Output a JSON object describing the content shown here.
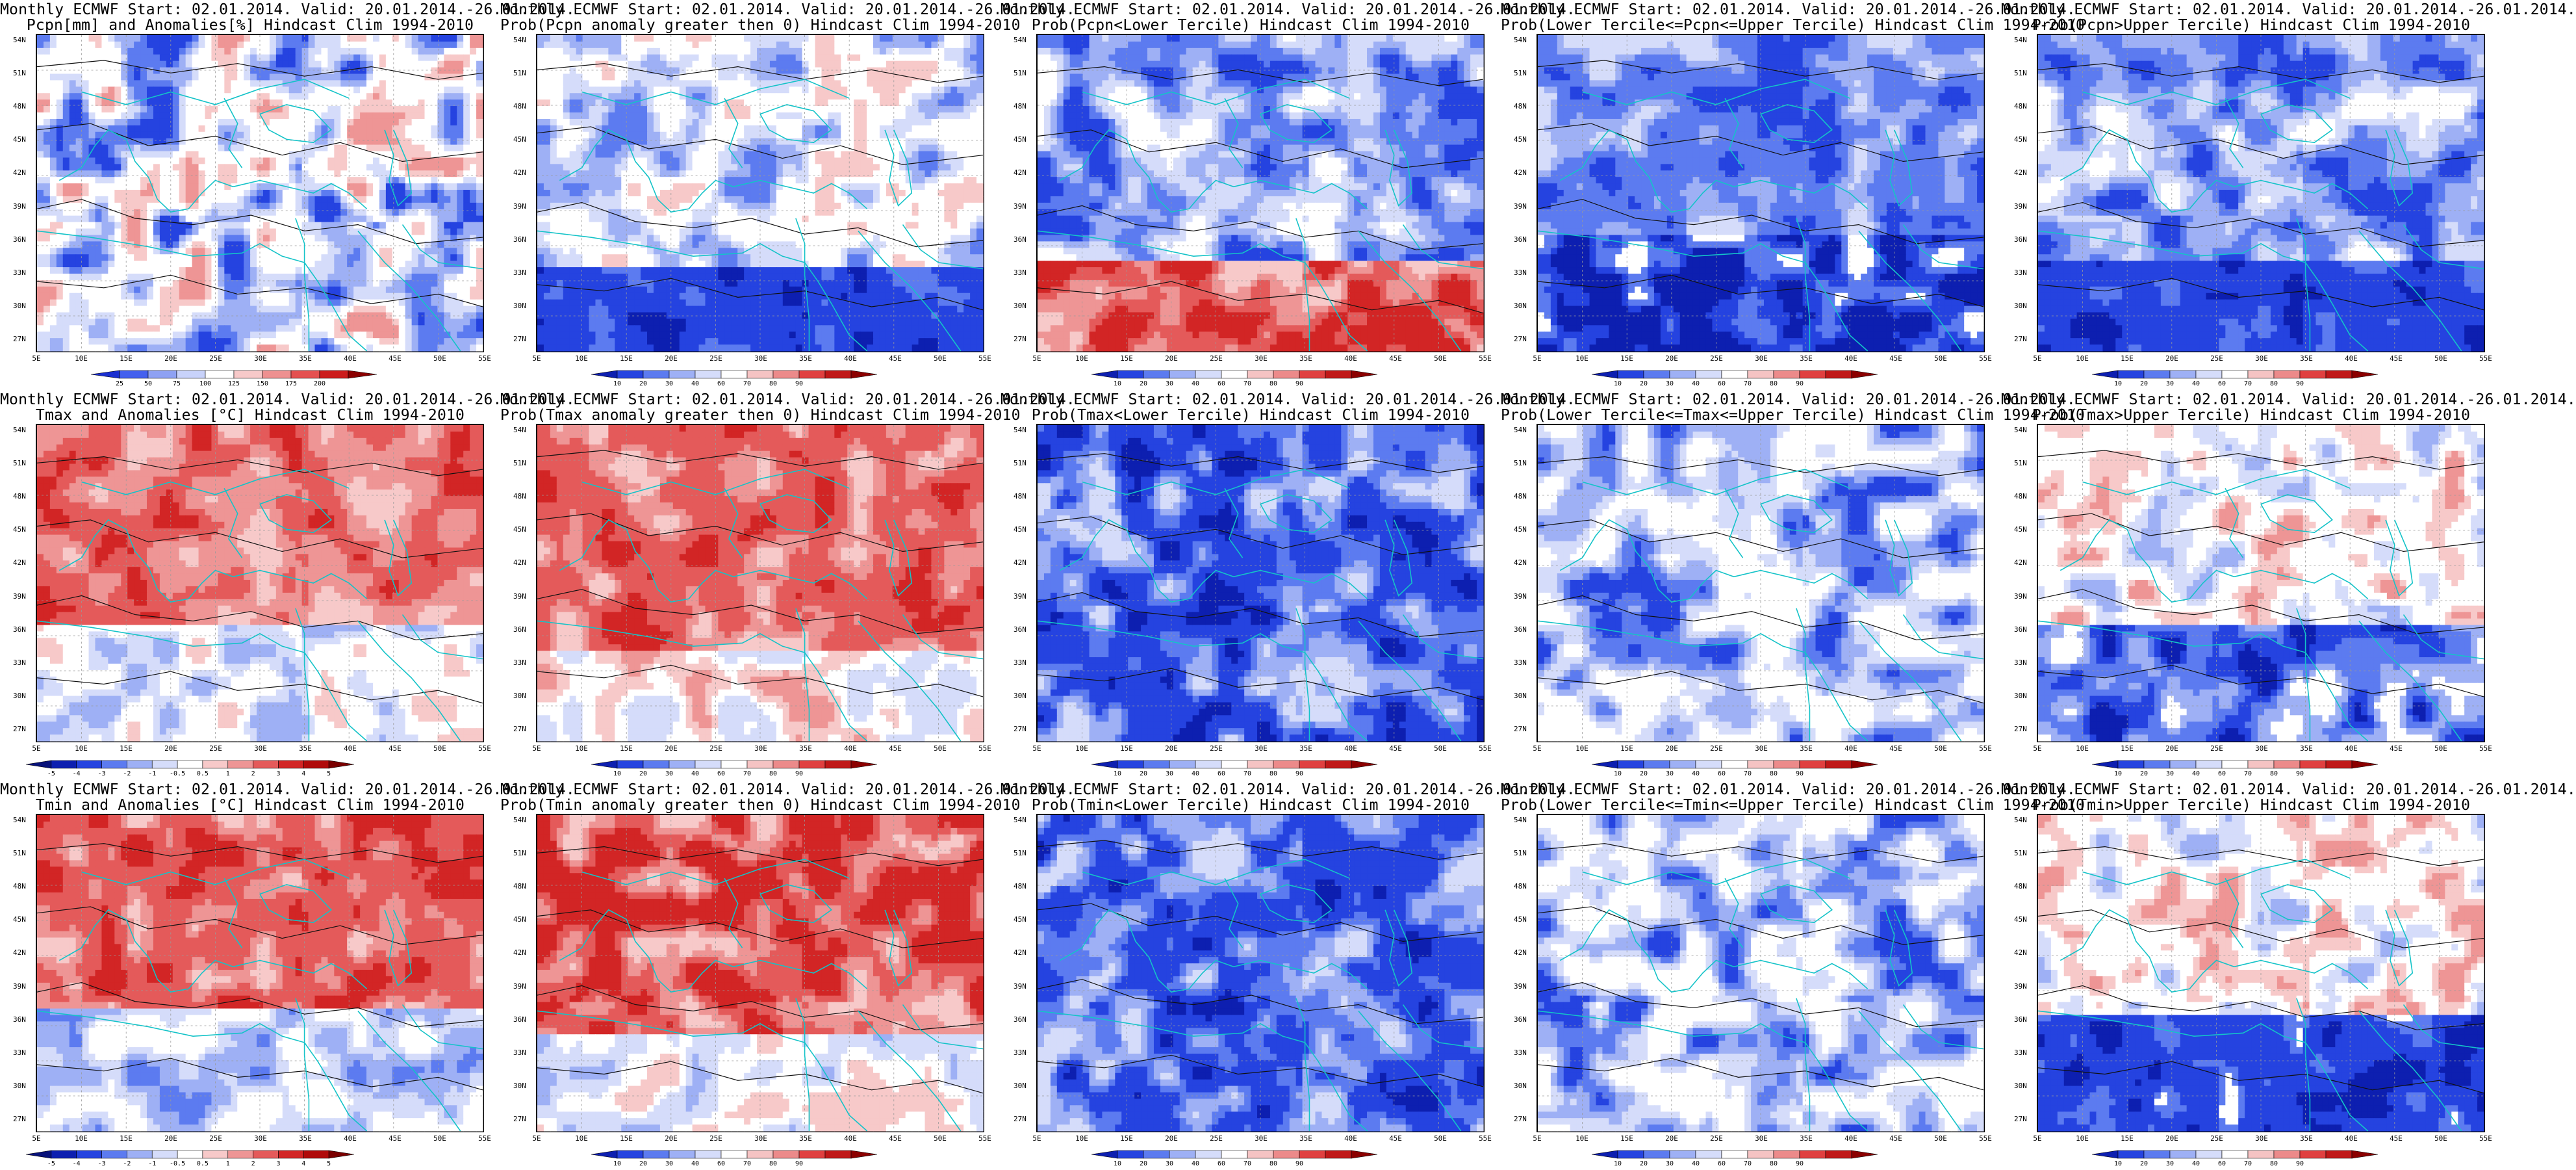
{
  "lat_labels": [
    "54N",
    "51N",
    "48N",
    "45N",
    "42N",
    "39N",
    "36N",
    "33N",
    "30N",
    "27N"
  ],
  "lon_labels": [
    "5E",
    "10E",
    "15E",
    "20E",
    "25E",
    "30E",
    "35E",
    "40E",
    "45E",
    "50E",
    "55E"
  ],
  "colorbars": {
    "prob": {
      "labels": [
        "10",
        "20",
        "30",
        "40",
        "60",
        "70",
        "80",
        "90"
      ],
      "colors": [
        "#0d1fb0",
        "#2543e0",
        "#5c7bf0",
        "#9eb0f5",
        "#d5dcfa",
        "#ffffff",
        "#f5c3c3",
        "#ec8a8a",
        "#e04040",
        "#c01818",
        "#8b0000"
      ]
    },
    "pcpn": {
      "labels": [
        "25",
        "50",
        "75",
        "100",
        "125",
        "150",
        "175",
        "200"
      ],
      "colors": [
        "#1a2fd0",
        "#4460ee",
        "#8ea1f3",
        "#c8d2fa",
        "#ffffff",
        "#f7c9c9",
        "#ee9090",
        "#e45050",
        "#cc1c1c",
        "#8b0000"
      ]
    },
    "temp": {
      "labels": [
        "-5",
        "-4",
        "-3",
        "-2",
        "-1",
        "-0.5",
        "0.5",
        "1",
        "2",
        "3",
        "4",
        "5"
      ],
      "colors": [
        "#08127a",
        "#0d1fb0",
        "#2543e0",
        "#5c7bf0",
        "#9eb0f5",
        "#d5dcfa",
        "#ffffff",
        "#f7c9c9",
        "#ee9595",
        "#e45a5a",
        "#d22525",
        "#b00a0a",
        "#7a0000"
      ]
    }
  },
  "panels": [
    {
      "line1": "Monthly ECMWF Start: 02.01.2014. Valid: 20.01.2014.-26.01.2014.",
      "line2": "Pcpn[mm] and Anomalies[%] Hindcast Clim 1994-2010",
      "cb": "pcpn",
      "scheme": "pcpn"
    },
    {
      "line1": "Monthly ECMWF Start: 02.01.2014. Valid: 20.01.2014.-26.01.2014.",
      "line2": "Prob(Pcpn anomaly greater then 0) Hindcast Clim 1994-2010",
      "cb": "prob",
      "scheme": "pcpn_pos"
    },
    {
      "line1": "Monthly ECMWF Start: 02.01.2014. Valid: 20.01.2014.-26.01.2014.",
      "line2": "Prob(Pcpn<Lower Tercile) Hindcast Clim 1994-2010",
      "cb": "prob",
      "scheme": "pcpn_low"
    },
    {
      "line1": "Monthly ECMWF Start: 02.01.2014. Valid: 20.01.2014.-26.01.2014.",
      "line2": "Prob(Lower Tercile<=Pcpn<=Upper Tercile) Hindcast Clim 1994-2010",
      "cb": "prob",
      "scheme": "pcpn_mid"
    },
    {
      "line1": "Monthly ECMWF Start: 02.01.2014. Valid: 20.01.2014.-26.01.2014.",
      "line2": "Prob(Pcpn>Upper Tercile) Hindcast Clim 1994-2010",
      "cb": "prob",
      "scheme": "pcpn_up"
    },
    {
      "line1": "Monthly ECMWF Start: 02.01.2014. Valid: 20.01.2014.-26.01.2014.",
      "line2": "Tmax and Anomalies [°C] Hindcast Clim 1994-2010",
      "cb": "temp",
      "scheme": "warm"
    },
    {
      "line1": "Monthly ECMWF Start: 02.01.2014. Valid: 20.01.2014.-26.01.2014.",
      "line2": "Prob(Tmax anomaly greater then 0) Hindcast Clim 1994-2010",
      "cb": "prob",
      "scheme": "warm_prob"
    },
    {
      "line1": "Monthly ECMWF Start: 02.01.2014. Valid: 20.01.2014.-26.01.2014.",
      "line2": "Prob(Tmax<Lower Tercile) Hindcast Clim 1994-2010",
      "cb": "prob",
      "scheme": "cold_strong"
    },
    {
      "line1": "Monthly ECMWF Start: 02.01.2014. Valid: 20.01.2014.-26.01.2014.",
      "line2": "Prob(Lower Tercile<=Tmax<=Upper Tercile) Hindcast Clim 1994-2010",
      "cb": "prob",
      "scheme": "cold_mid"
    },
    {
      "line1": "Monthly ECMWF Start: 02.01.2014. Valid: 20.01.2014.-26.01.2014.",
      "line2": "Prob(Tmax>Upper Tercile) Hindcast Clim 1994-2010",
      "cb": "prob",
      "scheme": "mixed_up"
    },
    {
      "line1": "Monthly ECMWF Start: 02.01.2014. Valid: 20.01.2014.-26.01.2014.",
      "line2": "Tmin and Anomalies [°C] Hindcast Clim 1994-2010",
      "cb": "temp",
      "scheme": "warm_n"
    },
    {
      "line1": "Monthly ECMWF Start: 02.01.2014. Valid: 20.01.2014.-26.01.2014.",
      "line2": "Prob(Tmin anomaly greater then 0) Hindcast Clim 1994-2010",
      "cb": "prob",
      "scheme": "warm_prob_n"
    },
    {
      "line1": "Monthly ECMWF Start: 02.01.2014. Valid: 20.01.2014.-26.01.2014.",
      "line2": "Prob(Tmin<Lower Tercile) Hindcast Clim 1994-2010",
      "cb": "prob",
      "scheme": "cold_strong"
    },
    {
      "line1": "Monthly ECMWF Start: 02.01.2014. Valid: 20.01.2014.-26.01.2014.",
      "line2": "Prob(Lower Tercile<=Tmin<=Upper Tercile) Hindcast Clim 1994-2010",
      "cb": "prob",
      "scheme": "cold_mid"
    },
    {
      "line1": "Monthly ECMWF Start: 02.01.2014. Valid: 20.01.2014.-26.01.2014.",
      "line2": "Prob(Tmin>Upper Tercile) Hindcast Clim 1994-2010",
      "cb": "prob",
      "scheme": "mixed_up_n"
    }
  ]
}
